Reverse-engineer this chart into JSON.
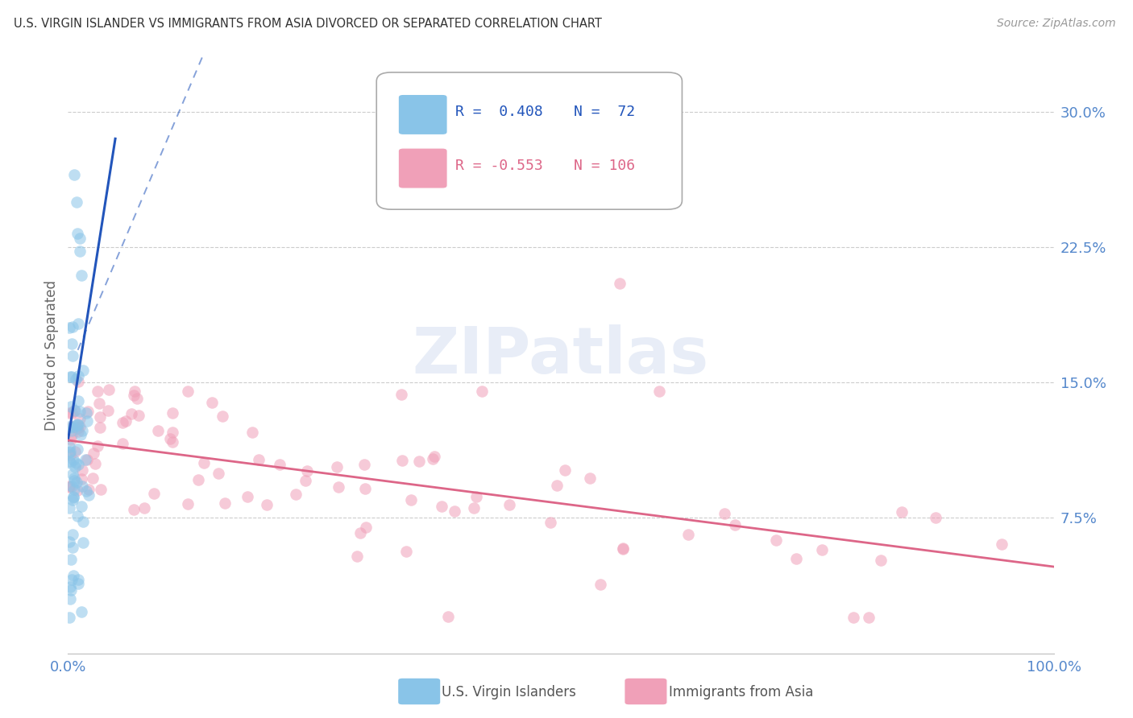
{
  "title": "U.S. VIRGIN ISLANDER VS IMMIGRANTS FROM ASIA DIVORCED OR SEPARATED CORRELATION CHART",
  "source": "Source: ZipAtlas.com",
  "ylabel": "Divorced or Separated",
  "xmin": 0.0,
  "xmax": 1.0,
  "ymin": 0.0,
  "ymax": 0.33,
  "watermark": "ZIPatlas",
  "ytick_vals": [
    0.0,
    0.075,
    0.15,
    0.225,
    0.3
  ],
  "ytick_labels": [
    "",
    "7.5%",
    "15.0%",
    "22.5%",
    "30.0%"
  ],
  "blue_color": "#89c4e8",
  "pink_color": "#f0a0b8",
  "blue_line_color": "#2255bb",
  "pink_line_color": "#dd6688",
  "axis_color": "#5588cc",
  "grid_color": "#cccccc",
  "title_color": "#333333",
  "background_color": "#ffffff",
  "legend_R_blue": "R =  0.408",
  "legend_N_blue": "N =  72",
  "legend_R_pink": "R = -0.553",
  "legend_N_pink": "N = 106",
  "blue_seed": 42,
  "pink_seed": 99
}
